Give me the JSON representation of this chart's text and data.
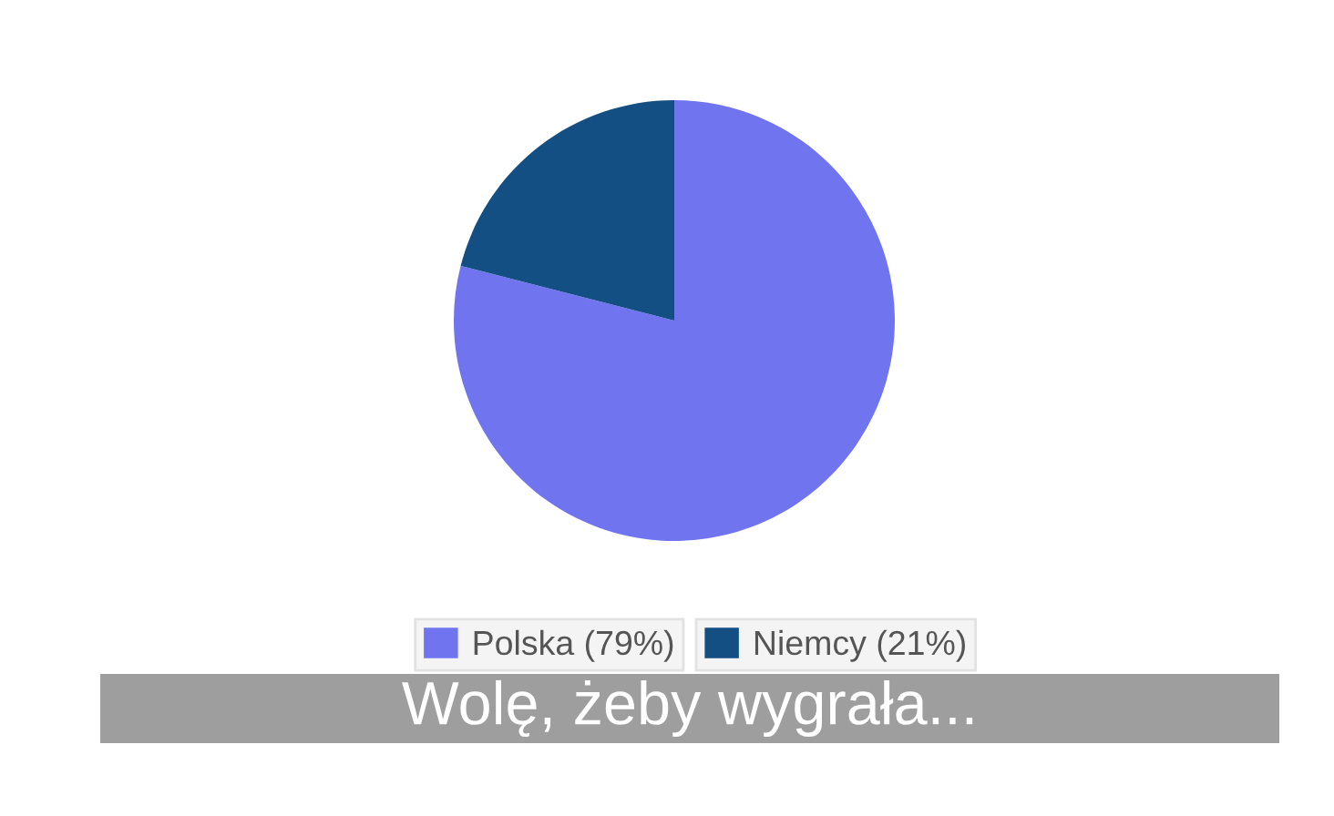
{
  "chart_data": {
    "type": "pie",
    "title": "Wolę, żeby wygrała...",
    "categories": [
      "Polska (79%)",
      "Niemcy (21%)"
    ],
    "values": [
      79,
      21
    ],
    "colors": [
      "#7075ef",
      "#134f83"
    ],
    "legend": "bottom"
  }
}
